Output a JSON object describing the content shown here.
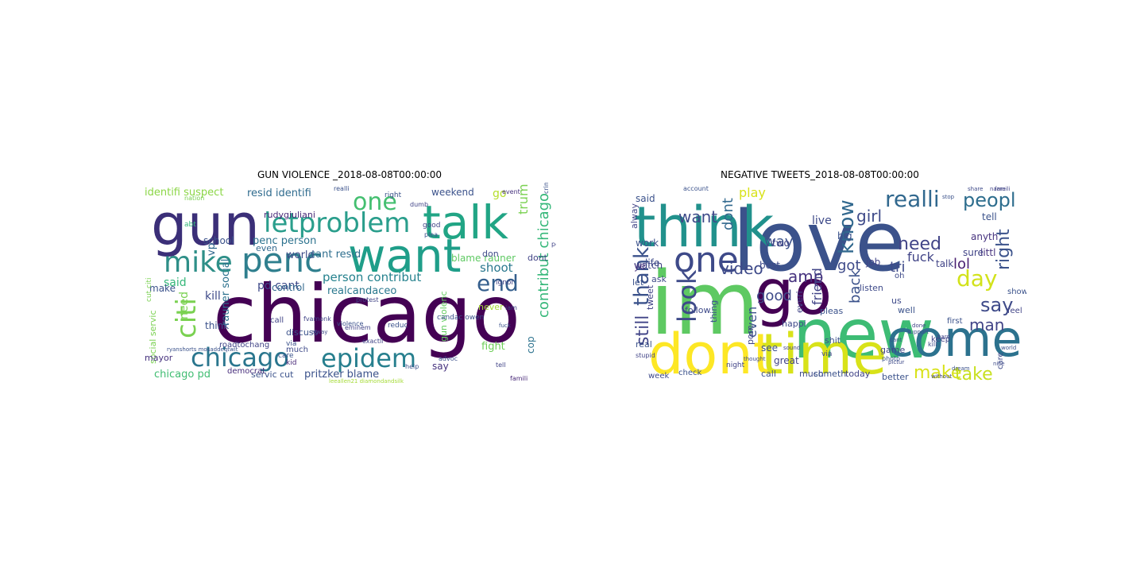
{
  "figure": {
    "panels": [
      {
        "title": "GUN VIOLENCE _2018-08-08T00:00:00",
        "words": [
          {
            "text": "chicago",
            "color": "#440154"
          },
          {
            "text": "gun",
            "color": "#3b2f78"
          },
          {
            "text": "talk",
            "color": "#21a585"
          },
          {
            "text": "want",
            "color": "#1f9e89"
          },
          {
            "text": "letproblem",
            "color": "#2a9e8c"
          },
          {
            "text": "mike",
            "color": "#2e8f88"
          },
          {
            "text": "penc",
            "color": "#2f7f8e"
          },
          {
            "text": "one",
            "color": "#44bf70"
          },
          {
            "text": "end",
            "color": "#355f8d"
          },
          {
            "text": "chicago",
            "color": "#2a768e"
          },
          {
            "text": "epidem",
            "color": "#277f8e"
          },
          {
            "text": "citi",
            "color": "#7ad151"
          },
          {
            "text": "identifi suspect",
            "color": "#8bd646"
          },
          {
            "text": "resid identifi",
            "color": "#2f6b8e"
          },
          {
            "text": "penc person",
            "color": "#2c728e"
          },
          {
            "text": "world",
            "color": "#3e4a89"
          },
          {
            "text": "realcandaceo",
            "color": "#2a788e"
          },
          {
            "text": "person contribut",
            "color": "#26828e"
          },
          {
            "text": "cant resid",
            "color": "#2e6e8e"
          },
          {
            "text": "pd cant",
            "color": "#3e4a89"
          },
          {
            "text": "trump",
            "color": "#7ad151"
          },
          {
            "text": "weekend",
            "color": "#3b528b"
          },
          {
            "text": "shoot",
            "color": "#2a788e"
          },
          {
            "text": "blame rauner",
            "color": "#5ec962"
          },
          {
            "text": "contribut chicago",
            "color": "#35b779"
          },
          {
            "text": "gun violenc",
            "color": "#63cb5f"
          },
          {
            "text": "kill",
            "color": "#3e4a89"
          },
          {
            "text": "school",
            "color": "#3b528b"
          },
          {
            "text": "rauner social",
            "color": "#2c728e"
          },
          {
            "text": "control",
            "color": "#31688e"
          },
          {
            "text": "think",
            "color": "#3b528b"
          },
          {
            "text": "said",
            "color": "#35b779"
          },
          {
            "text": "make",
            "color": "#3b528b"
          },
          {
            "text": "chicago pd",
            "color": "#40bd72"
          },
          {
            "text": "servic cut",
            "color": "#3b528b"
          },
          {
            "text": "pritzker blame",
            "color": "#3b528b"
          },
          {
            "text": "fight",
            "color": "#6ece58"
          },
          {
            "text": "cop",
            "color": "#2c728e"
          },
          {
            "text": "say",
            "color": "#46327e"
          },
          {
            "text": "social servic",
            "color": "#7ad151"
          },
          {
            "text": "even",
            "color": "#31688e"
          },
          {
            "text": "never",
            "color": "#a5db36"
          },
          {
            "text": "don",
            "color": "#3e4a89"
          },
          {
            "text": "go",
            "color": "#b5de2b"
          },
          {
            "text": "dont",
            "color": "#414487"
          },
          {
            "text": "vp",
            "color": "#31688e"
          },
          {
            "text": "need",
            "color": "#7ad151"
          },
          {
            "text": "rudygiuliani",
            "color": "#482878"
          },
          {
            "text": "discuss",
            "color": "#3b528b"
          },
          {
            "text": "roadtochang",
            "color": "#414487"
          },
          {
            "text": "mayor",
            "color": "#46327e"
          },
          {
            "text": "democrat",
            "color": "#472d7b"
          },
          {
            "text": "much",
            "color": "#3e4a89"
          },
          {
            "text": "kid",
            "color": "#482878"
          },
          {
            "text": "via",
            "color": "#3b528b"
          },
          {
            "text": "call",
            "color": "#414487"
          },
          {
            "text": "reduc",
            "color": "#3b528b"
          },
          {
            "text": "famili",
            "color": "#482878"
          },
          {
            "text": "abt",
            "color": "#35b779"
          },
          {
            "text": "ignor",
            "color": "#414487"
          },
          {
            "text": "right",
            "color": "#3b528b"
          },
          {
            "text": "good",
            "color": "#414487"
          },
          {
            "text": "plea",
            "color": "#3b528b"
          },
          {
            "text": "candac owen",
            "color": "#3b528b"
          },
          {
            "text": "exactli",
            "color": "#414487"
          },
          {
            "text": "advoc",
            "color": "#3b528b"
          },
          {
            "text": "eminem",
            "color": "#414487"
          },
          {
            "text": "care",
            "color": "#3b528b"
          },
          {
            "text": "event",
            "color": "#46327e"
          },
          {
            "text": "cut citi",
            "color": "#7ad151"
          },
          {
            "text": "realli",
            "color": "#3b528b"
          },
          {
            "text": "protest",
            "color": "#414487"
          },
          {
            "text": "fvamonk",
            "color": "#414487"
          },
          {
            "text": "alway",
            "color": "#3e4a89"
          },
          {
            "text": "peopl",
            "color": "#414487"
          },
          {
            "text": "violence",
            "color": "#3b528b"
          },
          {
            "text": "nation",
            "color": "#7ad151"
          },
          {
            "text": "crime",
            "color": "#3b528b"
          },
          {
            "text": "dumb",
            "color": "#414487"
          },
          {
            "text": "help",
            "color": "#3b528b"
          },
          {
            "text": "tell",
            "color": "#414487"
          },
          {
            "text": "fuck",
            "color": "#3b528b"
          },
          {
            "text": "iam",
            "color": "#414487"
          },
          {
            "text": "ryanshorts mosaddeqtwit",
            "color": "#3b528b"
          },
          {
            "text": "leeallen21 diamondandsilk",
            "color": "#a5db36"
          }
        ]
      },
      {
        "title": "NEGATIVE TWEETS_2018-08-08T00:00:00",
        "words": [
          {
            "text": "love",
            "color": "#3b528b"
          },
          {
            "text": "new",
            "color": "#3dbc74"
          },
          {
            "text": "im",
            "color": "#5ec962"
          },
          {
            "text": "think",
            "color": "#21918c"
          },
          {
            "text": "go",
            "color": "#440154"
          },
          {
            "text": "one",
            "color": "#3e4a89"
          },
          {
            "text": "dont",
            "color": "#fde725"
          },
          {
            "text": "time",
            "color": "#d8e219"
          },
          {
            "text": "come",
            "color": "#2c728e"
          },
          {
            "text": "realli",
            "color": "#31688e"
          },
          {
            "text": "know",
            "color": "#31688e"
          },
          {
            "text": "look",
            "color": "#3e4a89"
          },
          {
            "text": "thank",
            "color": "#3b528b"
          },
          {
            "text": "still",
            "color": "#414487"
          },
          {
            "text": "peopl",
            "color": "#2e6e8e"
          },
          {
            "text": "day",
            "color": "#d2e21b"
          },
          {
            "text": "say",
            "color": "#3e4a89"
          },
          {
            "text": "make",
            "color": "#d8e219"
          },
          {
            "text": "take",
            "color": "#c8e020"
          },
          {
            "text": "girl",
            "color": "#3e4a89"
          },
          {
            "text": "right",
            "color": "#3b528b"
          },
          {
            "text": "want",
            "color": "#3e4a89"
          },
          {
            "text": "dont",
            "color": "#31688e"
          },
          {
            "text": "play",
            "color": "#d8e219"
          },
          {
            "text": "way",
            "color": "#3b528b"
          },
          {
            "text": "video",
            "color": "#3e4a89"
          },
          {
            "text": "amp",
            "color": "#46327e"
          },
          {
            "text": "need",
            "color": "#414487"
          },
          {
            "text": "tri",
            "color": "#3e4a89"
          },
          {
            "text": "lol",
            "color": "#481f70"
          },
          {
            "text": "man",
            "color": "#414487"
          },
          {
            "text": "good",
            "color": "#3e4a89"
          },
          {
            "text": "back",
            "color": "#3b528b"
          },
          {
            "text": "friend",
            "color": "#414487"
          },
          {
            "text": "got",
            "color": "#3e4a89"
          },
          {
            "text": "fuck",
            "color": "#414487"
          },
          {
            "text": "even",
            "color": "#3b528b"
          },
          {
            "text": "watch",
            "color": "#414487"
          },
          {
            "text": "littl",
            "color": "#46327e"
          },
          {
            "text": "anyth",
            "color": "#46327e"
          },
          {
            "text": "talk",
            "color": "#414487"
          },
          {
            "text": "sure",
            "color": "#414487"
          },
          {
            "text": "tell",
            "color": "#3b528b"
          },
          {
            "text": "live",
            "color": "#3e4a89"
          },
          {
            "text": "two",
            "color": "#414487"
          },
          {
            "text": "big",
            "color": "#3b528b"
          },
          {
            "text": "job",
            "color": "#414487"
          },
          {
            "text": "said",
            "color": "#3b528b"
          },
          {
            "text": "work",
            "color": "#3b528b"
          },
          {
            "text": "life",
            "color": "#3e4a89"
          },
          {
            "text": "alway",
            "color": "#414487"
          },
          {
            "text": "best",
            "color": "#3e4a89"
          },
          {
            "text": "ye",
            "color": "#46327e"
          },
          {
            "text": "let",
            "color": "#3b528b"
          },
          {
            "text": "ask",
            "color": "#3e4a89"
          },
          {
            "text": "tweet",
            "color": "#414487"
          },
          {
            "text": "real",
            "color": "#3b528b"
          },
          {
            "text": "follow",
            "color": "#3e4a89"
          },
          {
            "text": "everi",
            "color": "#414487"
          },
          {
            "text": "thing",
            "color": "#3b528b"
          },
          {
            "text": "porn",
            "color": "#414487"
          },
          {
            "text": "happi",
            "color": "#3e4a89"
          },
          {
            "text": "pleas",
            "color": "#3b528b"
          },
          {
            "text": "see",
            "color": "#3b528b"
          },
          {
            "text": "great",
            "color": "#414487"
          },
          {
            "text": "call",
            "color": "#3b528b"
          },
          {
            "text": "much",
            "color": "#3e4a89"
          },
          {
            "text": "someth",
            "color": "#3b528b"
          },
          {
            "text": "today",
            "color": "#414487"
          },
          {
            "text": "better",
            "color": "#3b528b"
          },
          {
            "text": "week",
            "color": "#3e4a89"
          },
          {
            "text": "check",
            "color": "#3b528b"
          },
          {
            "text": "night",
            "color": "#414487"
          },
          {
            "text": "listen",
            "color": "#3e4a89"
          },
          {
            "text": "keep",
            "color": "#414487"
          },
          {
            "text": "well",
            "color": "#3b528b"
          },
          {
            "text": "us",
            "color": "#3e4a89"
          },
          {
            "text": "shit",
            "color": "#3b528b"
          },
          {
            "text": "game",
            "color": "#414487"
          },
          {
            "text": "first",
            "color": "#3b528b"
          },
          {
            "text": "care",
            "color": "#3e4a89"
          },
          {
            "text": "feel",
            "color": "#414487"
          },
          {
            "text": "show",
            "color": "#3b528b"
          },
          {
            "text": "oh",
            "color": "#3e4a89"
          },
          {
            "text": "via",
            "color": "#414487"
          },
          {
            "text": "account",
            "color": "#3b528b"
          },
          {
            "text": "name",
            "color": "#414487"
          },
          {
            "text": "share",
            "color": "#3e4a89"
          },
          {
            "text": "stop",
            "color": "#3b528b"
          },
          {
            "text": "famili",
            "color": "#414487"
          },
          {
            "text": "photo",
            "color": "#3b528b"
          },
          {
            "text": "kill",
            "color": "#3e4a89"
          },
          {
            "text": "stupid",
            "color": "#414487"
          },
          {
            "text": "support",
            "color": "#3b528b"
          },
          {
            "text": "thought",
            "color": "#3e4a89"
          },
          {
            "text": "without",
            "color": "#414487"
          },
          {
            "text": "dream",
            "color": "#3b528b"
          },
          {
            "text": "pictur",
            "color": "#3e4a89"
          },
          {
            "text": "sound",
            "color": "#414487"
          },
          {
            "text": "world",
            "color": "#3b528b"
          },
          {
            "text": "nice",
            "color": "#3e4a89"
          },
          {
            "text": "hard",
            "color": "#414487"
          },
          {
            "text": "cant",
            "color": "#3b528b"
          },
          {
            "text": "done",
            "color": "#414487"
          }
        ]
      }
    ]
  }
}
